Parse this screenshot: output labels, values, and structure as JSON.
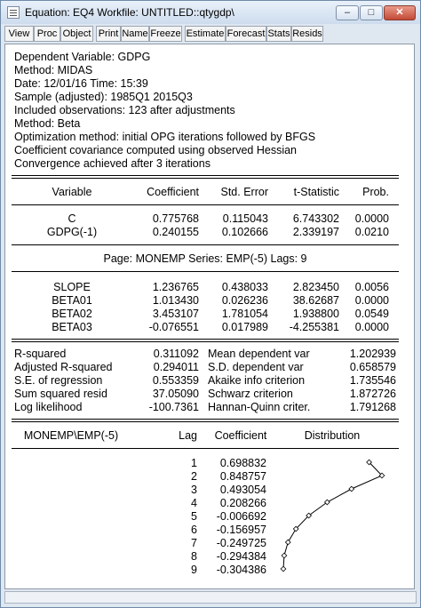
{
  "window": {
    "title": "Equation: EQ4   Workfile: UNTITLED::qtygdp\\",
    "buttons": {
      "minimize": "–",
      "maximize": "□",
      "close": "✕"
    }
  },
  "toolbar": [
    "View",
    "Proc",
    "Object",
    "Print",
    "Name",
    "Freeze",
    "Estimate",
    "Forecast",
    "Stats",
    "Resids"
  ],
  "header_lines": [
    "Dependent Variable: GDPG",
    "Method: MIDAS",
    "Date: 12/01/16   Time: 15:39",
    "Sample (adjusted): 1985Q1 2015Q3",
    "Included observations: 123 after adjustments",
    "Method: Beta",
    "Optimization method: initial OPG iterations followed by BFGS",
    "Coefficient covariance computed using observed Hessian",
    "Convergence achieved after 3 iterations"
  ],
  "coef_table": {
    "columns": [
      "Variable",
      "Coefficient",
      "Std. Error",
      "t-Statistic",
      "Prob."
    ],
    "rows": [
      [
        "C",
        "0.775768",
        "0.115043",
        "6.743302",
        "0.0000"
      ],
      [
        "GDPG(-1)",
        "0.240155",
        "0.102666",
        "2.339197",
        "0.0210"
      ]
    ],
    "page_label": "Page: MONEMP   Series: EMP(-5)   Lags: 9",
    "page_rows": [
      [
        "SLOPE",
        "1.236765",
        "0.438033",
        "2.823450",
        "0.0056"
      ],
      [
        "BETA01",
        "1.013430",
        "0.026236",
        "38.62687",
        "0.0000"
      ],
      [
        "BETA02",
        "3.453107",
        "1.781054",
        "1.938800",
        "0.0549"
      ],
      [
        "BETA03",
        "-0.076551",
        "0.017989",
        "-4.255381",
        "0.0000"
      ]
    ]
  },
  "stats": [
    [
      "R-squared",
      "0.311092",
      "Mean dependent var",
      "1.202939"
    ],
    [
      "Adjusted R-squared",
      "0.294011",
      "S.D. dependent var",
      "0.658579"
    ],
    [
      "S.E. of regression",
      "0.553359",
      "Akaike info criterion",
      "1.735546"
    ],
    [
      "Sum squared resid",
      "37.05090",
      "Schwarz criterion",
      "1.872726"
    ],
    [
      "Log likelihood",
      "-100.7361",
      "Hannan-Quinn criter.",
      "1.791268"
    ]
  ],
  "lag_table": {
    "columns": [
      "MONEMP\\EMP(-5)",
      "Lag",
      "Coefficient",
      "Distribution"
    ],
    "rows": [
      [
        "1",
        "0.698832"
      ],
      [
        "2",
        "0.848757"
      ],
      [
        "3",
        "0.493054"
      ],
      [
        "4",
        "0.208266"
      ],
      [
        "5",
        "-0.006692"
      ],
      [
        "6",
        "-0.156957"
      ],
      [
        "7",
        "-0.249725"
      ],
      [
        "8",
        "-0.294384"
      ],
      [
        "9",
        "-0.304386"
      ]
    ],
    "distribution_values": [
      0.698832,
      0.848757,
      0.493054,
      0.208266,
      -0.006692,
      -0.156957,
      -0.249725,
      -0.294384,
      -0.304386
    ]
  }
}
